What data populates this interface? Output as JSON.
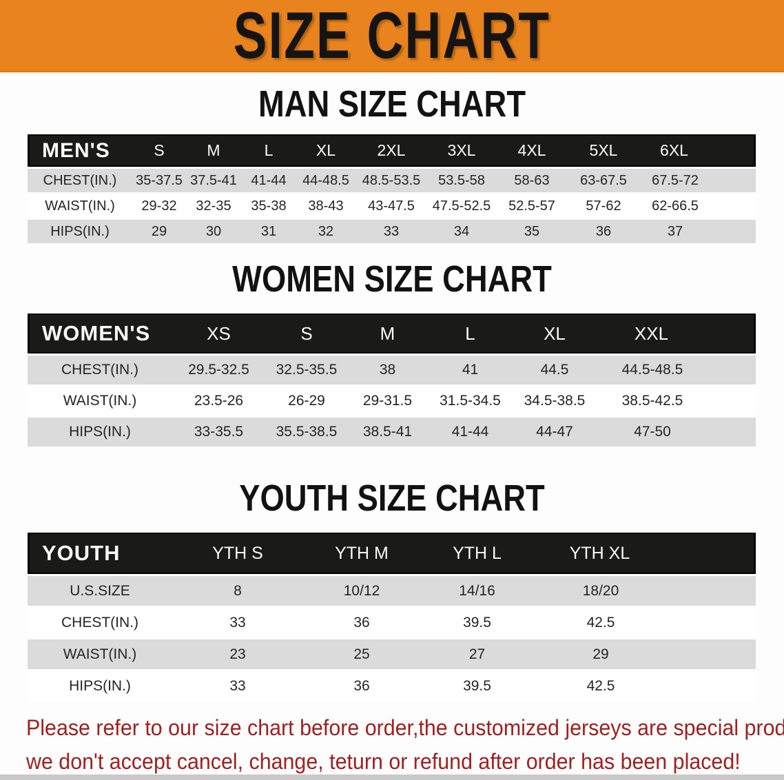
{
  "banner": {
    "title": "SIZE CHART"
  },
  "sections": [
    {
      "title": "MAN SIZE CHART",
      "header_label": "MEN'S",
      "columns": [
        "S",
        "M",
        "L",
        "XL",
        "2XL",
        "3XL",
        "4XL",
        "5XL",
        "6XL"
      ],
      "rows": [
        {
          "label": "CHEST(IN.)",
          "values": [
            "35-37.5",
            "37.5-41",
            "41-44",
            "44-48.5",
            "48.5-53.5",
            "53.5-58",
            "58-63",
            "63-67.5",
            "67.5-72"
          ]
        },
        {
          "label": "WAIST(IN.)",
          "values": [
            "29-32",
            "32-35",
            "35-38",
            "38-43",
            "43-47.5",
            "47.5-52.5",
            "52.5-57",
            "57-62",
            "62-66.5"
          ]
        },
        {
          "label": "HIPS(IN.)",
          "values": [
            "29",
            "30",
            "31",
            "32",
            "33",
            "34",
            "35",
            "36",
            "37"
          ]
        }
      ]
    },
    {
      "title": "WOMEN SIZE CHART",
      "header_label": "WOMEN'S",
      "columns": [
        "XS",
        "S",
        "M",
        "L",
        "XL",
        "XXL"
      ],
      "rows": [
        {
          "label": "CHEST(IN.)",
          "values": [
            "29.5-32.5",
            "32.5-35.5",
            "38",
            "41",
            "44.5",
            "44.5-48.5"
          ]
        },
        {
          "label": "WAIST(IN.)",
          "values": [
            "23.5-26",
            "26-29",
            "29-31.5",
            "31.5-34.5",
            "34.5-38.5",
            "38.5-42.5"
          ]
        },
        {
          "label": "HIPS(IN.)",
          "values": [
            "33-35.5",
            "35.5-38.5",
            "38.5-41",
            "41-44",
            "44-47",
            "47-50"
          ]
        }
      ]
    },
    {
      "title": "YOUTH SIZE CHART",
      "header_label": "YOUTH",
      "columns": [
        "YTH S",
        "YTH M",
        "YTH L",
        "YTH XL"
      ],
      "rows": [
        {
          "label": "U.S.SIZE",
          "values": [
            "8",
            "10/12",
            "14/16",
            "18/20"
          ]
        },
        {
          "label": "CHEST(IN.)",
          "values": [
            "33",
            "36",
            "39.5",
            "42.5"
          ]
        },
        {
          "label": "WAIST(IN.)",
          "values": [
            "23",
            "25",
            "27",
            "29"
          ]
        },
        {
          "label": "HIPS(IN.)",
          "values": [
            "33",
            "36",
            "39.5",
            "42.5"
          ]
        }
      ]
    }
  ],
  "disclaimer": {
    "line1": "Please refer to our size chart before order,the customized jerseys are special products,",
    "line2": "we don't accept cancel, change, teturn or refund after order has been placed!"
  },
  "colors": {
    "banner_orange": "#E8831D",
    "header_black": "#1A1A19",
    "row_gray": "#DBDBDB",
    "disclaimer_red": "#A02020"
  }
}
